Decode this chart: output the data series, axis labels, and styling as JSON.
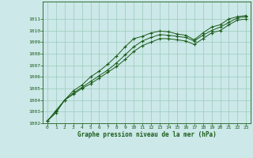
{
  "title": "Graphe pression niveau de la mer (hPa)",
  "background_color": "#cce8e8",
  "plot_bg_color": "#cce8e8",
  "grid_color": "#99ccbb",
  "line_color": "#1a5c1a",
  "marker_color": "#1a5c1a",
  "ylim": [
    1002,
    1012
  ],
  "xlim": [
    0,
    23
  ],
  "yticks": [
    1002,
    1003,
    1004,
    1005,
    1006,
    1007,
    1008,
    1009,
    1010,
    1011
  ],
  "xticks": [
    0,
    1,
    2,
    3,
    4,
    5,
    6,
    7,
    8,
    9,
    10,
    11,
    12,
    13,
    14,
    15,
    16,
    17,
    18,
    19,
    20,
    21,
    22,
    23
  ],
  "series1": [
    1002.2,
    1003.1,
    1004.0,
    1004.8,
    1005.3,
    1006.0,
    1006.5,
    1007.1,
    1007.8,
    1008.6,
    1009.3,
    1009.5,
    1009.8,
    1009.95,
    1009.9,
    1009.7,
    1009.6,
    1009.2,
    1009.8,
    1010.3,
    1010.5,
    1011.0,
    1011.2,
    1011.3
  ],
  "series2": [
    1002.2,
    1003.0,
    1004.0,
    1004.6,
    1005.1,
    1005.6,
    1006.1,
    1006.6,
    1007.2,
    1007.9,
    1008.6,
    1009.1,
    1009.4,
    1009.65,
    1009.6,
    1009.5,
    1009.4,
    1009.1,
    1009.6,
    1010.0,
    1010.3,
    1010.7,
    1011.1,
    1011.2
  ],
  "series3": [
    1002.2,
    1002.9,
    1004.0,
    1004.5,
    1005.0,
    1005.4,
    1005.9,
    1006.4,
    1006.9,
    1007.5,
    1008.2,
    1008.7,
    1009.0,
    1009.3,
    1009.3,
    1009.2,
    1009.1,
    1008.8,
    1009.3,
    1009.8,
    1010.0,
    1010.5,
    1010.9,
    1011.0
  ]
}
